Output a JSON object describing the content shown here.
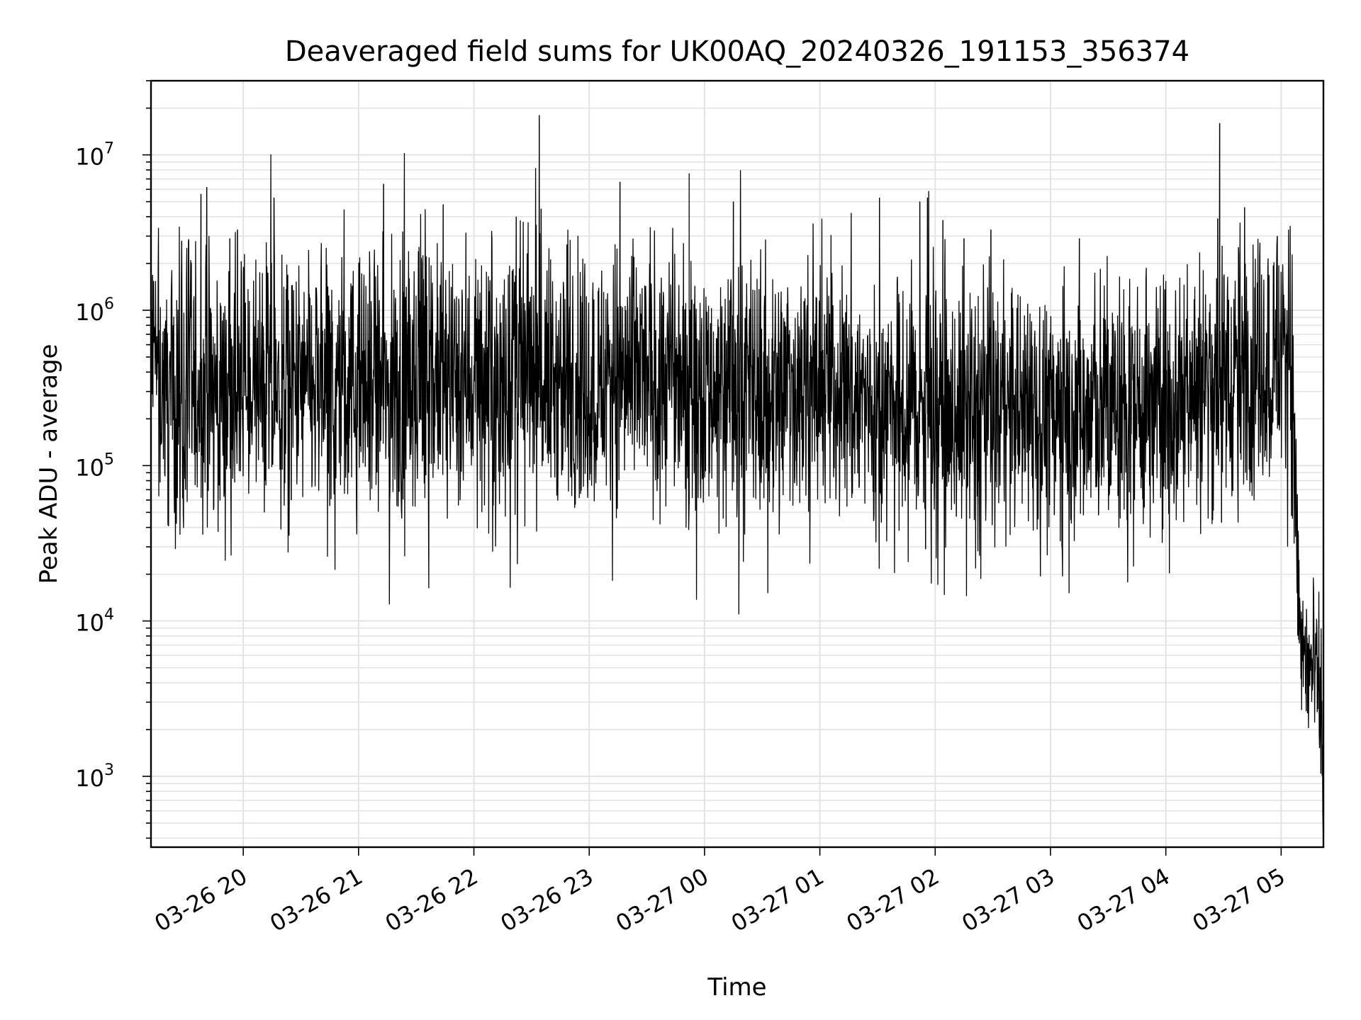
{
  "chart_data": {
    "type": "line",
    "title": "Deaveraged field sums for UK00AQ_20240326_191153_356374",
    "xlabel": "Time",
    "ylabel": "Peak ADU - average",
    "yscale": "log",
    "ylim": [
      350,
      30000000
    ],
    "xlim": [
      "2024-03-26T19:12",
      "2024-03-27T05:22"
    ],
    "grid": true,
    "line_color": "#000000",
    "x_ticks": [
      {
        "t": "2024-03-26T20:00",
        "label": "03-26 20"
      },
      {
        "t": "2024-03-26T21:00",
        "label": "03-26 21"
      },
      {
        "t": "2024-03-26T22:00",
        "label": "03-26 22"
      },
      {
        "t": "2024-03-26T23:00",
        "label": "03-26 23"
      },
      {
        "t": "2024-03-27T00:00",
        "label": "03-27 00"
      },
      {
        "t": "2024-03-27T01:00",
        "label": "03-27 01"
      },
      {
        "t": "2024-03-27T02:00",
        "label": "03-27 02"
      },
      {
        "t": "2024-03-27T03:00",
        "label": "03-27 03"
      },
      {
        "t": "2024-03-27T04:00",
        "label": "03-27 04"
      },
      {
        "t": "2024-03-27T05:00",
        "label": "03-27 05"
      }
    ],
    "y_ticks": [
      {
        "value": 1000,
        "base": "10",
        "exp": "3"
      },
      {
        "value": 10000,
        "base": "10",
        "exp": "4"
      },
      {
        "value": 100000,
        "base": "10",
        "exp": "5"
      },
      {
        "value": 1000000,
        "base": "10",
        "exp": "6"
      },
      {
        "value": 10000000,
        "base": "10",
        "exp": "7"
      }
    ],
    "series": [
      {
        "points": [
          [
            "2024-03-26T19:12",
            500000
          ],
          [
            "2024-03-26T19:20",
            300000
          ],
          [
            "2024-03-26T19:28",
            250000
          ],
          [
            "2024-03-26T19:36",
            320000
          ],
          [
            "2024-03-26T19:44",
            280000
          ],
          [
            "2024-03-26T19:52",
            300000
          ],
          [
            "2024-03-26T20:00",
            330000
          ],
          [
            "2024-03-26T20:10",
            300000
          ],
          [
            "2024-03-26T20:20",
            280000
          ],
          [
            "2024-03-26T20:30",
            310000
          ],
          [
            "2024-03-26T20:40",
            290000
          ],
          [
            "2024-03-26T20:50",
            300000
          ],
          [
            "2024-03-26T21:00",
            310000
          ],
          [
            "2024-03-26T21:10",
            290000
          ],
          [
            "2024-03-26T21:20",
            300000
          ],
          [
            "2024-03-26T21:30",
            320000
          ],
          [
            "2024-03-26T21:40",
            340000
          ],
          [
            "2024-03-26T21:50",
            360000
          ],
          [
            "2024-03-26T22:00",
            380000
          ],
          [
            "2024-03-26T22:15",
            370000
          ],
          [
            "2024-03-26T22:30",
            360000
          ],
          [
            "2024-03-26T22:45",
            340000
          ],
          [
            "2024-03-26T23:00",
            330000
          ],
          [
            "2024-03-26T23:15",
            360000
          ],
          [
            "2024-03-26T23:30",
            380000
          ],
          [
            "2024-03-26T23:45",
            360000
          ],
          [
            "2024-03-27T00:00",
            350000
          ],
          [
            "2024-03-27T00:15",
            300000
          ],
          [
            "2024-03-27T00:30",
            280000
          ],
          [
            "2024-03-27T00:45",
            330000
          ],
          [
            "2024-03-27T01:00",
            360000
          ],
          [
            "2024-03-27T01:15",
            300000
          ],
          [
            "2024-03-27T01:30",
            240000
          ],
          [
            "2024-03-27T01:45",
            230000
          ],
          [
            "2024-03-27T02:00",
            210000
          ],
          [
            "2024-03-27T02:15",
            220000
          ],
          [
            "2024-03-27T02:30",
            230000
          ],
          [
            "2024-03-27T02:45",
            230000
          ],
          [
            "2024-03-27T03:00",
            230000
          ],
          [
            "2024-03-27T03:15",
            220000
          ],
          [
            "2024-03-27T03:30",
            240000
          ],
          [
            "2024-03-27T03:45",
            240000
          ],
          [
            "2024-03-27T04:00",
            260000
          ],
          [
            "2024-03-27T04:15",
            320000
          ],
          [
            "2024-03-27T04:30",
            380000
          ],
          [
            "2024-03-27T04:45",
            430000
          ],
          [
            "2024-03-27T05:00",
            520000
          ],
          [
            "2024-03-27T05:04",
            600000
          ],
          [
            "2024-03-27T05:06",
            300000
          ],
          [
            "2024-03-27T05:08",
            40000
          ],
          [
            "2024-03-27T05:10",
            7000
          ],
          [
            "2024-03-27T05:14",
            5000
          ],
          [
            "2024-03-27T05:18",
            4500
          ],
          [
            "2024-03-27T05:21",
            2500
          ],
          [
            "2024-03-27T05:22",
            600
          ]
        ],
        "spikes": [
          [
            "2024-03-26T19:28",
            2800000
          ],
          [
            "2024-03-26T19:38",
            5600000
          ],
          [
            "2024-03-26T19:41",
            6200000
          ],
          [
            "2024-03-26T19:53",
            2900000
          ],
          [
            "2024-03-26T19:57",
            3300000
          ],
          [
            "2024-03-26T20:16",
            5300000
          ],
          [
            "2024-03-26T21:13",
            6500000
          ],
          [
            "2024-03-26T21:44",
            4800000
          ],
          [
            "2024-03-26T22:22",
            4000000
          ],
          [
            "2024-03-26T22:34",
            18000000
          ],
          [
            "2024-03-26T22:35",
            4500000
          ],
          [
            "2024-03-26T23:16",
            6700000
          ],
          [
            "2024-03-26T23:52",
            7600000
          ],
          [
            "2024-03-27T00:15",
            5000000
          ],
          [
            "2024-03-27T01:31",
            5300000
          ],
          [
            "2024-03-27T01:52",
            5000000
          ],
          [
            "2024-03-27T01:56",
            5300000
          ],
          [
            "2024-03-27T02:04",
            3800000
          ],
          [
            "2024-03-27T02:15",
            2900000
          ],
          [
            "2024-03-27T02:29",
            3300000
          ],
          [
            "2024-03-27T03:15",
            2900000
          ],
          [
            "2024-03-27T04:27",
            3900000
          ],
          [
            "2024-03-27T04:28",
            16000000
          ],
          [
            "2024-03-27T04:41",
            4600000
          ],
          [
            "2024-03-27T04:58",
            3000000
          ]
        ],
        "dips": [
          [
            "2024-03-26T19:30",
            70000
          ],
          [
            "2024-03-26T19:35",
            75000
          ],
          [
            "2024-03-26T20:25",
            60000
          ],
          [
            "2024-03-26T20:45",
            55000
          ],
          [
            "2024-03-26T23:52",
            57000
          ],
          [
            "2024-03-27T01:28",
            44000
          ],
          [
            "2024-03-27T01:32",
            43000
          ],
          [
            "2024-03-27T01:55",
            29000
          ],
          [
            "2024-03-27T02:11",
            47000
          ],
          [
            "2024-03-27T03:02",
            48000
          ],
          [
            "2024-03-27T03:25",
            48000
          ],
          [
            "2024-03-27T04:29",
            43000
          ]
        ]
      }
    ]
  }
}
